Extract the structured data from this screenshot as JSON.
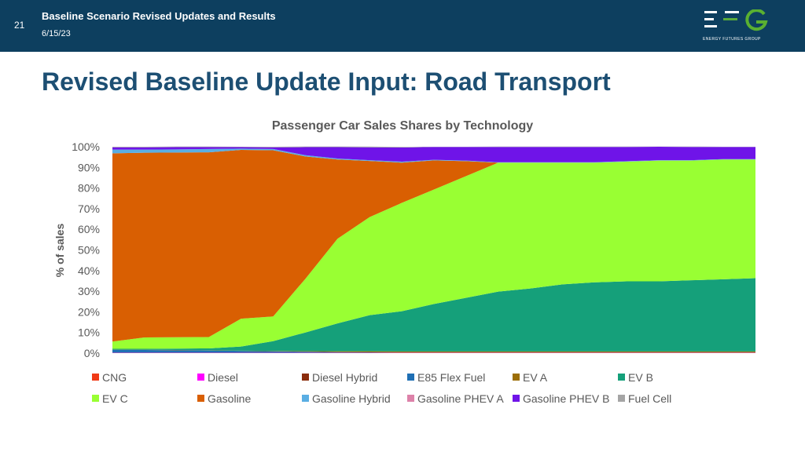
{
  "header": {
    "slide_number": "21",
    "title": "Baseline Scenario Revised Updates and Results",
    "date": "6/15/23",
    "logo_text": "ENERGY FUTURES GROUP"
  },
  "page_title": "Revised Baseline Update Input: Road Transport",
  "colors": {
    "header_bg": "#0d3f5f",
    "title_text": "#1d4f73",
    "logo_green": "#5ab031"
  },
  "chart_data": {
    "type": "area",
    "stacked": true,
    "title": "Passenger Car Sales Shares by Technology",
    "xlabel": "",
    "ylabel": "% of sales",
    "ylim": [
      0,
      100
    ],
    "yticks": [
      "0%",
      "10%",
      "20%",
      "30%",
      "40%",
      "50%",
      "60%",
      "70%",
      "80%",
      "90%",
      "100%"
    ],
    "x_count": 21,
    "legend_position": "bottom",
    "series": [
      {
        "name": "CNG",
        "color": "#f03a17",
        "values": [
          0.1,
          0.1,
          0.1,
          0.1,
          0.1,
          0.1,
          0.1,
          0.1,
          0.1,
          0.1,
          0.1,
          0.1,
          0.1,
          0.1,
          0.1,
          0.1,
          0.1,
          0.1,
          0.1,
          0.1,
          0.1
        ]
      },
      {
        "name": "Diesel",
        "color": "#ff00ff",
        "values": [
          0.1,
          0.1,
          0.1,
          0.1,
          0.1,
          0.1,
          0.1,
          0.1,
          0.1,
          0.1,
          0.1,
          0.1,
          0.1,
          0.1,
          0.1,
          0.1,
          0.1,
          0.1,
          0.1,
          0.1,
          0.1
        ]
      },
      {
        "name": "Diesel Hybrid",
        "color": "#8b2d0c",
        "values": [
          0,
          0,
          0,
          0,
          0,
          0,
          0,
          0,
          0,
          0,
          0,
          0,
          0,
          0,
          0,
          0,
          0,
          0,
          0,
          0,
          0
        ]
      },
      {
        "name": "E85 Flex Fuel",
        "color": "#1f6fb4",
        "values": [
          1.3,
          1.3,
          1.2,
          1.1,
          0.9,
          0.7,
          0.5,
          0.3,
          0.2,
          0.1,
          0.1,
          0.1,
          0.1,
          0.1,
          0.1,
          0.1,
          0.1,
          0.1,
          0.1,
          0.1,
          0.1
        ]
      },
      {
        "name": "EV A",
        "color": "#9c6e06",
        "values": [
          0.1,
          0.1,
          0.1,
          0.1,
          0.1,
          0.2,
          0.3,
          0.4,
          0.5,
          0.5,
          0.5,
          0.5,
          0.5,
          0.5,
          0.5,
          0.5,
          0.5,
          0.5,
          0.5,
          0.5,
          0.5
        ]
      },
      {
        "name": "EV B",
        "color": "#15a07a",
        "values": [
          0.5,
          0.5,
          0.7,
          0.9,
          2.0,
          4.7,
          9.0,
          13.5,
          17.5,
          19.5,
          23.0,
          26.0,
          29.0,
          30.5,
          32.5,
          33.5,
          34.0,
          34.0,
          34.5,
          35.0,
          35.5
        ]
      },
      {
        "name": "EV C",
        "color": "#99ff33",
        "values": [
          3.5,
          5.5,
          5.5,
          5.5,
          13.5,
          12.0,
          26.0,
          41.0,
          47.5,
          52.5,
          55.5,
          59.0,
          62.5,
          61.0,
          59.0,
          58.0,
          58.0,
          58.5,
          58.0,
          58.0,
          57.5
        ]
      },
      {
        "name": "Gasoline",
        "color": "#d95f02",
        "values": [
          91.2,
          89.5,
          89.5,
          89.5,
          81.8,
          80.5,
          59.3,
          38.4,
          27.2,
          19.5,
          14.1,
          7.2,
          0,
          0,
          0,
          0,
          0,
          0,
          0,
          0,
          0
        ]
      },
      {
        "name": "Gasoline Hybrid",
        "color": "#5aaee3",
        "values": [
          1.8,
          1.5,
          1.5,
          1.6,
          0.6,
          0.6,
          0.6,
          0.5,
          0.4,
          0.5,
          0.3,
          0.3,
          0.2,
          0.2,
          0.2,
          0.2,
          0.2,
          0.2,
          0.2,
          0.2,
          0.2
        ]
      },
      {
        "name": "Gasoline PHEV A",
        "color": "#dd82a9",
        "values": [
          0,
          0,
          0,
          0,
          0,
          0,
          0,
          0,
          0,
          0,
          0,
          0,
          0,
          0,
          0,
          0,
          0,
          0,
          0,
          0,
          0
        ]
      },
      {
        "name": "Gasoline PHEV B",
        "color": "#6f14e8",
        "values": [
          1.1,
          1.1,
          1.1,
          0.9,
          0.7,
          0.8,
          3.9,
          5.5,
          6.2,
          6.8,
          6.2,
          6.6,
          7.4,
          7.4,
          7.4,
          7.4,
          6.9,
          6.5,
          6.4,
          5.9,
          5.9
        ]
      },
      {
        "name": "Fuel Cell",
        "color": "#a5a5a5",
        "values": [
          0.3,
          0.3,
          0.3,
          0.3,
          0.2,
          0.3,
          0.3,
          0.3,
          0.4,
          0.3,
          0.1,
          0.1,
          0.2,
          0.2,
          0.2,
          0.2,
          0.2,
          0.1,
          0.2,
          0.1,
          0.1
        ]
      }
    ]
  }
}
